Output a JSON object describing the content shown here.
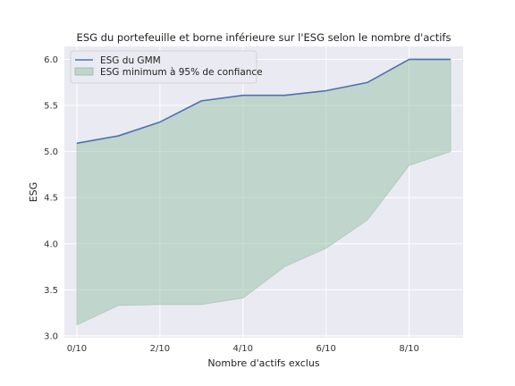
{
  "chart_data": {
    "type": "line",
    "title": "ESG du portefeuille et borne inférieure sur l'ESG selon le nombre d'actifs",
    "xlabel": "Nombre d'actifs exclus",
    "ylabel": "ESG",
    "x": [
      0,
      1,
      2,
      3,
      4,
      5,
      6,
      7,
      8,
      9
    ],
    "xlim": [
      -0.3,
      9.3
    ],
    "ylim": [
      2.98,
      6.14
    ],
    "x_ticks": [
      0,
      2,
      4,
      6,
      8
    ],
    "x_tick_labels": [
      "0/10",
      "2/10",
      "4/10",
      "6/10",
      "8/10"
    ],
    "y_ticks": [
      3.0,
      3.5,
      4.0,
      4.5,
      5.0,
      5.5,
      6.0
    ],
    "y_tick_labels": [
      "3.0",
      "3.5",
      "4.0",
      "4.5",
      "5.0",
      "5.5",
      "6.0"
    ],
    "grid": true,
    "legend_position": "top-left",
    "series": [
      {
        "name": "ESG du GMM",
        "kind": "line",
        "color": "#4c72b0",
        "values": [
          5.09,
          5.17,
          5.32,
          5.55,
          5.61,
          5.61,
          5.66,
          5.75,
          6.0,
          6.0
        ]
      },
      {
        "name": "ESG minimum à 95% de confiance",
        "kind": "band",
        "color": "#8fbc9b",
        "lower": [
          3.12,
          3.33,
          3.34,
          3.34,
          3.41,
          3.75,
          3.95,
          4.26,
          4.85,
          5.0
        ],
        "upper": [
          5.09,
          5.17,
          5.32,
          5.55,
          5.61,
          5.61,
          5.66,
          5.75,
          6.0,
          6.0
        ]
      }
    ]
  },
  "colors": {
    "plot_background": "#eaeaf2",
    "grid": "#ffffff",
    "line": "#4c72b0",
    "band_fill": "#8fbc9b"
  }
}
